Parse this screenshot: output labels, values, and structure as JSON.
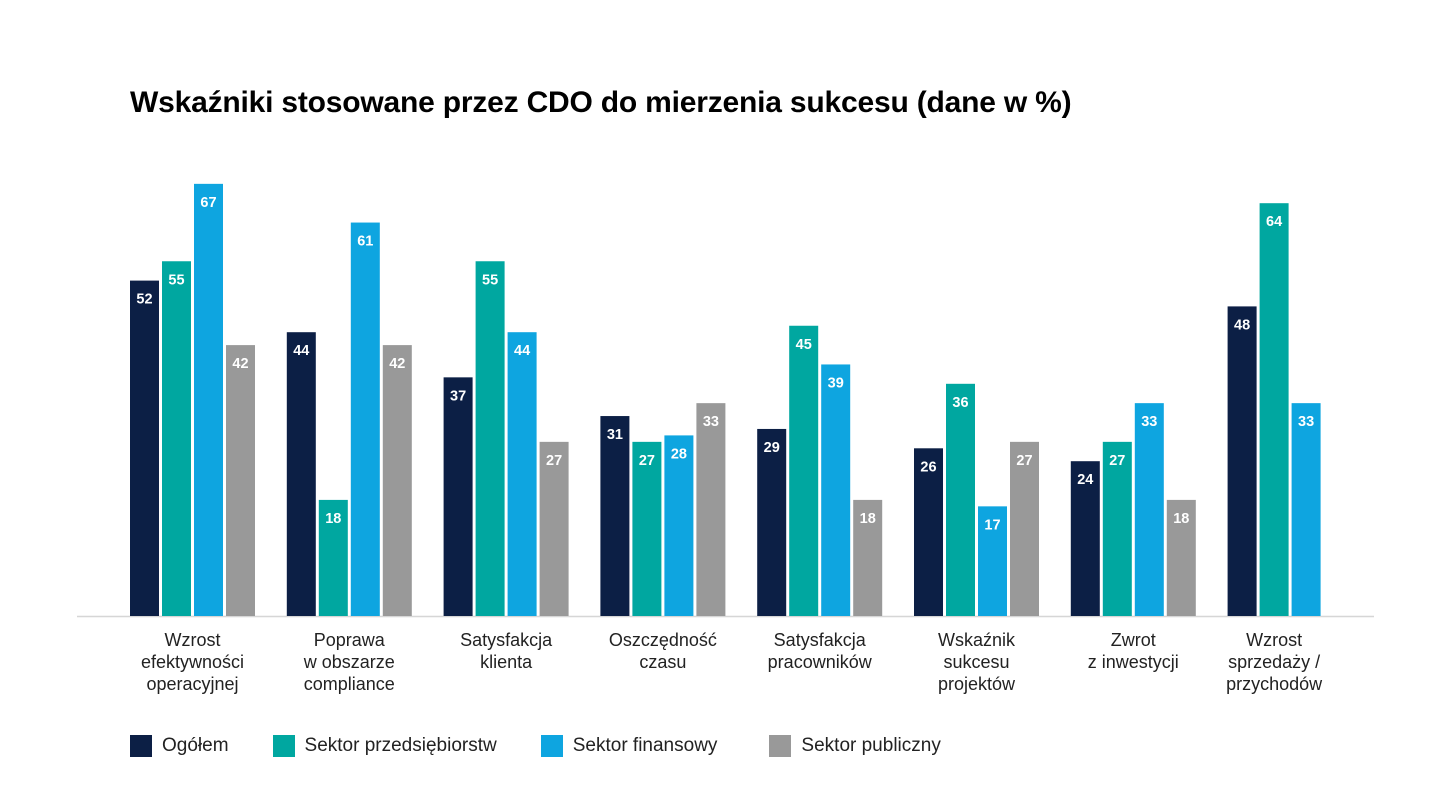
{
  "chart_data": {
    "type": "bar",
    "title": "Wskaźniki stosowane przez CDO do mierzenia sukcesu (dane w %)",
    "xlabel": "",
    "ylabel": "",
    "ylim": [
      0,
      70
    ],
    "grid": false,
    "legend_position": "bottom-left",
    "categories": [
      [
        "Wzrost",
        "efektywności",
        "operacyjnej"
      ],
      [
        "Poprawa",
        "w obszarze",
        "compliance"
      ],
      [
        "Satysfakcja",
        "klienta"
      ],
      [
        "Oszczędność",
        "czasu"
      ],
      [
        "Satysfakcja",
        "pracowników"
      ],
      [
        "Wskaźnik",
        "sukcesu",
        "projektów"
      ],
      [
        "Zwrot",
        "z inwestycji"
      ],
      [
        "Wzrost",
        "sprzedaży /",
        "przychodów"
      ]
    ],
    "series": [
      {
        "name": "Ogółem",
        "color": "#0c1f45",
        "values": [
          52,
          44,
          37,
          31,
          29,
          26,
          24,
          48
        ]
      },
      {
        "name": "Sektor przedsiębiorstw",
        "color": "#00a7a0",
        "values": [
          55,
          18,
          55,
          27,
          45,
          36,
          27,
          64
        ]
      },
      {
        "name": "Sektor finansowy",
        "color": "#0ea5e0",
        "values": [
          67,
          61,
          44,
          28,
          39,
          17,
          33,
          33
        ]
      },
      {
        "name": "Sektor publiczny",
        "color": "#999999",
        "values": [
          42,
          42,
          27,
          33,
          18,
          27,
          18,
          null
        ]
      }
    ]
  }
}
